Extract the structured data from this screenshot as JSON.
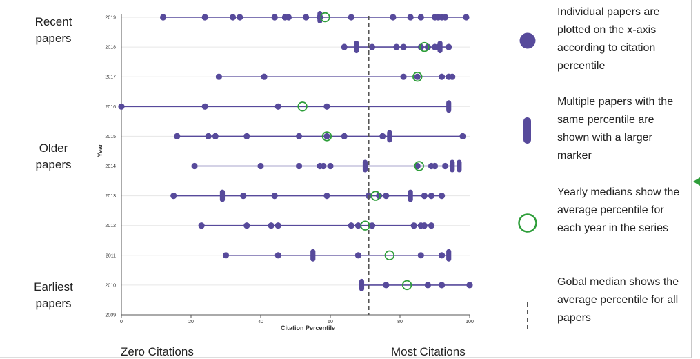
{
  "labels": {
    "recent": "Recent\npapers",
    "older": "Older\npapers",
    "earliest": "Earliest\npapers",
    "zero": "Zero Citations",
    "most": "Most Citations"
  },
  "legend": [
    {
      "marker": "dot",
      "text": "Individual papers are plotted on the x-axis according to citation percentile"
    },
    {
      "marker": "pill",
      "text": "Multiple papers with the same percentile are shown with a larger marker"
    },
    {
      "marker": "ring",
      "text": "Yearly medians show the average percentile for each year in the series"
    },
    {
      "marker": "dash",
      "text": "Gobal median shows the average percentile for all papers"
    }
  ],
  "colors": {
    "points": "#574a9b",
    "median": "#2e9e3a",
    "global_median": "#555555"
  },
  "chart_data": {
    "type": "scatter",
    "xlabel": "Citation Percentile",
    "ylabel": "Year",
    "xlim": [
      0,
      100
    ],
    "xticks": [
      0,
      20,
      40,
      60,
      80,
      100
    ],
    "years": [
      2009,
      2010,
      2011,
      2012,
      2013,
      2014,
      2015,
      2016,
      2017,
      2018,
      2019
    ],
    "global_median": 71,
    "rows": [
      {
        "year": 2019,
        "points": [
          12,
          24,
          32,
          34,
          44,
          47,
          48,
          53,
          57,
          66,
          78,
          83,
          86,
          90,
          91,
          92,
          93,
          99
        ],
        "multi": [
          57
        ],
        "median": 58.5
      },
      {
        "year": 2018,
        "points": [
          64,
          72,
          79,
          81,
          86,
          88,
          90,
          91,
          94
        ],
        "multi": [
          67.5,
          91.5
        ],
        "median": 87
      },
      {
        "year": 2017,
        "points": [
          28,
          41,
          81,
          85,
          92,
          94,
          95
        ],
        "multi": [],
        "median": 85
      },
      {
        "year": 2016,
        "points": [
          0,
          24,
          45,
          59
        ],
        "multi": [
          94
        ],
        "median": 52
      },
      {
        "year": 2015,
        "points": [
          16,
          25,
          27,
          36,
          51,
          59,
          64,
          75,
          98
        ],
        "multi": [
          77
        ],
        "median": 59
      },
      {
        "year": 2014,
        "points": [
          21,
          40,
          51,
          57,
          58,
          60,
          85,
          89,
          90,
          93
        ],
        "multi": [
          70,
          95,
          97
        ],
        "median": 85.5
      },
      {
        "year": 2013,
        "points": [
          15,
          35,
          44,
          59,
          71,
          74,
          76,
          87,
          89,
          92
        ],
        "multi": [
          29,
          83
        ],
        "median": 73
      },
      {
        "year": 2012,
        "points": [
          23,
          36,
          43,
          45,
          66,
          68,
          72,
          84,
          86,
          87,
          89
        ],
        "multi": [],
        "median": 70
      },
      {
        "year": 2011,
        "points": [
          30,
          45,
          68,
          86,
          92
        ],
        "multi": [
          55,
          94
        ],
        "median": 77
      },
      {
        "year": 2010,
        "points": [
          76,
          88,
          92,
          100
        ],
        "multi": [
          69
        ],
        "median": 82
      }
    ]
  }
}
